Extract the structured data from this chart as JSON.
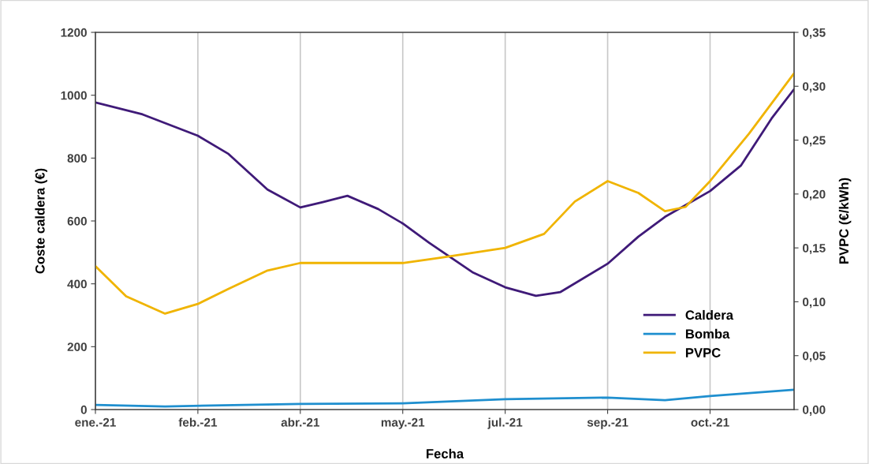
{
  "chart_data": {
    "type": "line",
    "xlabel": "Fecha",
    "ylabel": "Coste caldera (€)",
    "y2label": "PVPC (€/kWh)",
    "xlim": [
      "2021-01-01",
      "2021-12-08"
    ],
    "xticks": [
      {
        "value": "2021-01-01",
        "label": "ene.-21"
      },
      {
        "value": "2021-02-20",
        "label": "feb.-21"
      },
      {
        "value": "2021-04-11",
        "label": "abr.-21"
      },
      {
        "value": "2021-05-31",
        "label": "may.-21"
      },
      {
        "value": "2021-07-20",
        "label": "jul.-21"
      },
      {
        "value": "2021-09-08",
        "label": "sep.-21"
      },
      {
        "value": "2021-10-28",
        "label": "oct.-21"
      }
    ],
    "ylim": [
      0,
      1200
    ],
    "yticks": [
      0,
      200,
      400,
      600,
      800,
      1000,
      1200
    ],
    "y2lim": [
      0,
      0.35
    ],
    "y2ticks": [
      {
        "value": 0,
        "label": "0,00"
      },
      {
        "value": 0.05,
        "label": "0,05"
      },
      {
        "value": 0.1,
        "label": "0,10"
      },
      {
        "value": 0.15,
        "label": "0,15"
      },
      {
        "value": 0.2,
        "label": "0,20"
      },
      {
        "value": 0.25,
        "label": "0,25"
      },
      {
        "value": 0.3,
        "label": "0,30"
      },
      {
        "value": 0.35,
        "label": "0,35"
      }
    ],
    "grid": "x",
    "legend": "bottom right",
    "marker": "none",
    "line_style": "solid",
    "series": [
      {
        "name": "Caldera",
        "color": "#3f1a78",
        "x": [
          "2021-01-01",
          "2021-01-24",
          "2021-02-20",
          "2021-03-07",
          "2021-03-26",
          "2021-04-11",
          "2021-04-22",
          "2021-05-04",
          "2021-05-19",
          "2021-05-31",
          "2021-06-13",
          "2021-07-04",
          "2021-07-20",
          "2021-08-04",
          "2021-08-16",
          "2021-09-08",
          "2021-09-23",
          "2021-10-06",
          "2021-10-28",
          "2021-11-12",
          "2021-11-27",
          "2021-12-08"
        ],
        "values": [
          977,
          939,
          871,
          813,
          700,
          643,
          660,
          680,
          638,
          592,
          530,
          437,
          389,
          362,
          374,
          464,
          550,
          613,
          695,
          776,
          926,
          1019
        ]
      },
      {
        "name": "Bomba",
        "color": "#1f8fcf",
        "x": [
          "2021-01-01",
          "2021-02-04",
          "2021-04-11",
          "2021-05-31",
          "2021-07-20",
          "2021-09-08",
          "2021-10-06",
          "2021-10-28",
          "2021-12-08"
        ],
        "values": [
          15,
          10,
          18,
          20,
          33,
          38,
          30,
          43,
          63
        ]
      },
      {
        "name": "PVPC",
        "color": "#f0b400",
        "axis": "y2",
        "x": [
          "2021-01-01",
          "2021-01-16",
          "2021-02-04",
          "2021-02-20",
          "2021-03-07",
          "2021-03-26",
          "2021-04-11",
          "2021-05-04",
          "2021-05-31",
          "2021-06-19",
          "2021-07-20",
          "2021-08-08",
          "2021-08-23",
          "2021-09-08",
          "2021-09-23",
          "2021-10-06",
          "2021-10-16",
          "2021-10-28",
          "2021-11-16",
          "2021-12-08"
        ],
        "values": [
          0.133,
          0.105,
          0.089,
          0.098,
          0.112,
          0.129,
          0.136,
          0.136,
          0.136,
          0.141,
          0.15,
          0.163,
          0.193,
          0.212,
          0.201,
          0.184,
          0.188,
          0.212,
          0.256,
          0.312
        ]
      }
    ]
  }
}
